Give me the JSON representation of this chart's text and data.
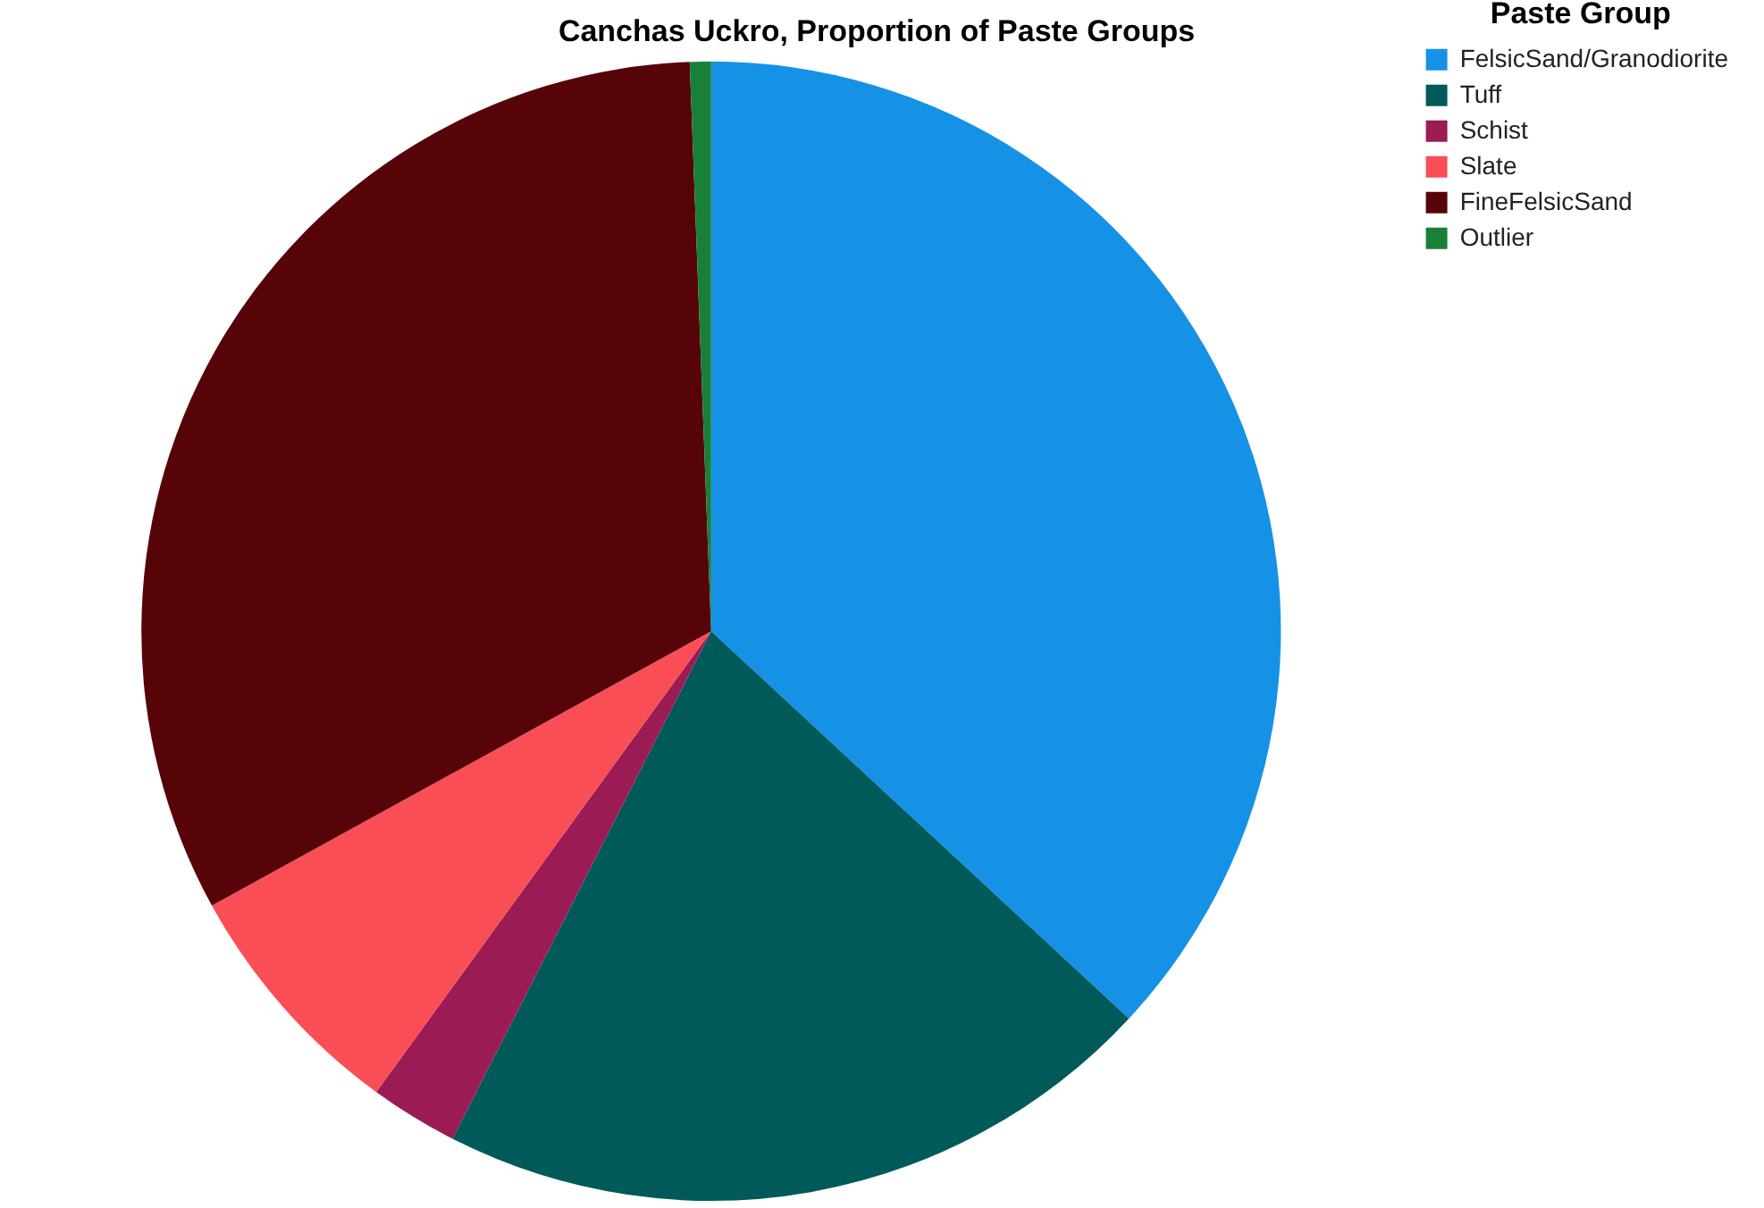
{
  "chart_data": {
    "type": "pie",
    "title": "Canchas Uckro, Proportion of Paste Groups",
    "legend_title": "Paste Group",
    "legend": "top right",
    "categories": [
      "FelsicSand/Granodiorite",
      "Tuff",
      "Schist",
      "Slate",
      "FineFelsicSand",
      "Outlier"
    ],
    "values": [
      36.9,
      20.6,
      2.5,
      7.0,
      32.4,
      0.6
    ],
    "colors": [
      "#1592e6",
      "#005a5a",
      "#9b1b55",
      "#fa4e56",
      "#570408",
      "#198038"
    ]
  }
}
